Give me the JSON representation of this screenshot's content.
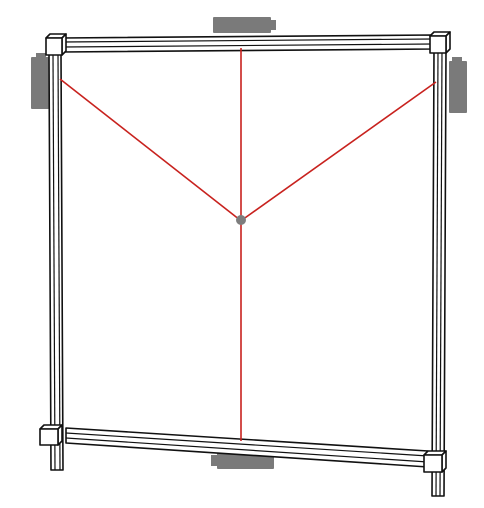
{
  "colors": {
    "background": "#ffffff",
    "frame_stroke": "#111111",
    "frame_fill": "#ffffff",
    "motor": "#7a7a7a",
    "cable": "#c8221e",
    "effector": "#7d7d7d"
  },
  "components": {
    "rails": [
      "top-rail",
      "bottom-rail",
      "left-post",
      "right-post"
    ],
    "corner_blocks": [
      "corner-block-top-left",
      "corner-block-top-right",
      "corner-block-bottom-left",
      "corner-block-bottom-right"
    ],
    "motors": [
      "motor-top",
      "motor-left",
      "motor-right",
      "motor-bottom"
    ],
    "cables": [
      "cable-top-left",
      "cable-top-center",
      "cable-top-right",
      "cable-bottom-center"
    ],
    "effector": "end-effector"
  }
}
